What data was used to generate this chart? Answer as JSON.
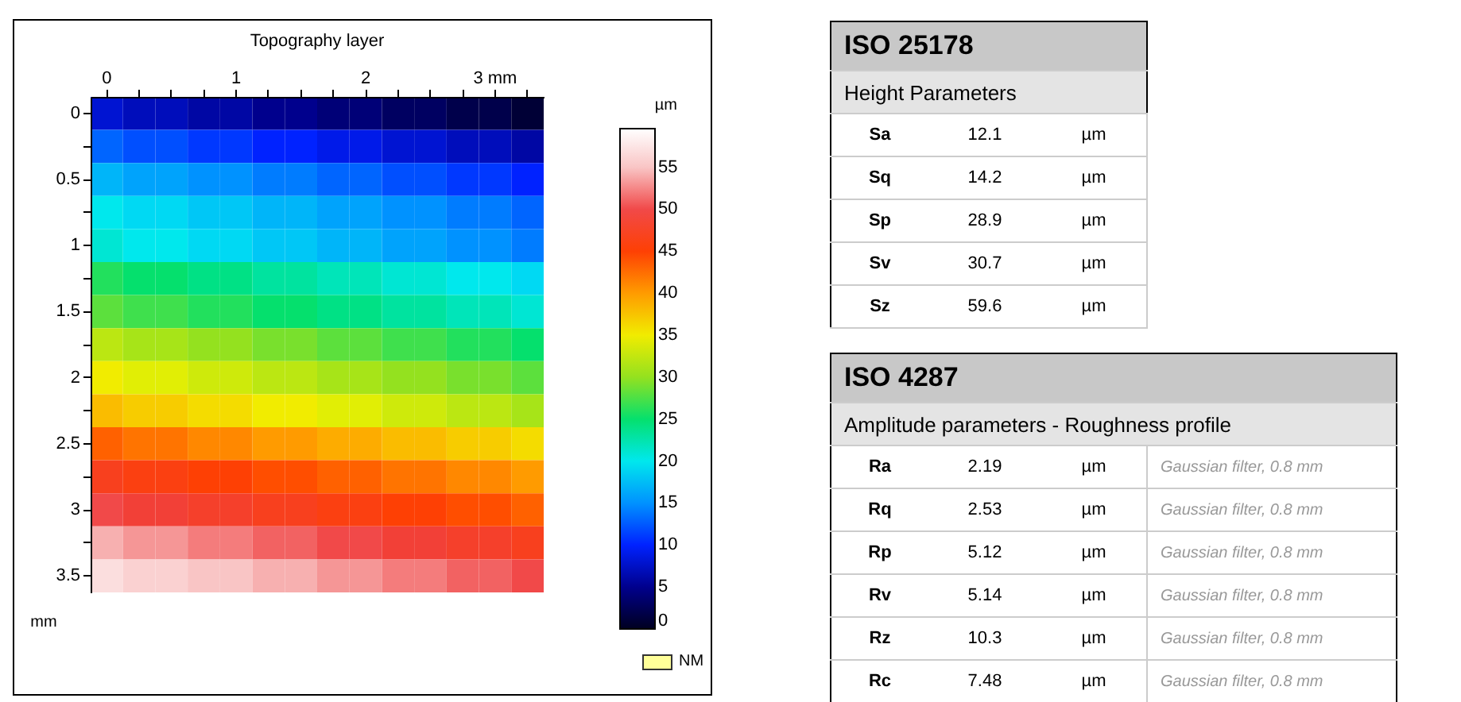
{
  "chart_data": [
    {
      "type": "heatmap",
      "title": "Topography layer",
      "ylabel": "mm",
      "clabel": "µm",
      "categories": [
        "0",
        null,
        null,
        null,
        "1",
        null,
        null,
        null,
        "2",
        null,
        null,
        null,
        "3 mm",
        null
      ],
      "y_categories": [
        "0",
        null,
        "0.5",
        null,
        "1",
        null,
        "1.5",
        null,
        "2",
        null,
        "2.5",
        null,
        "3",
        null,
        "3.5"
      ],
      "clim": [
        0,
        59.6
      ],
      "cticks": [
        0,
        5,
        10,
        15,
        20,
        25,
        30,
        35,
        40,
        45,
        50,
        55
      ],
      "colors": [
        "#000020",
        "#00008c",
        "#0020ff",
        "#0090ff",
        "#00e8f0",
        "#00e070",
        "#90e020",
        "#f0f000",
        "#ffa000",
        "#ff4000",
        "#f04040",
        "#f8c0c0",
        "#ffffff"
      ],
      "annotations": [
        "NM"
      ],
      "cells": [
        [
          8,
          7,
          7,
          6,
          6,
          5,
          5,
          4,
          4,
          3,
          3,
          2,
          2,
          1
        ],
        [
          13,
          12,
          12,
          11,
          11,
          10,
          10,
          9,
          9,
          8,
          8,
          7,
          7,
          6
        ],
        [
          17,
          16,
          16,
          15,
          15,
          14,
          14,
          13,
          13,
          12,
          12,
          11,
          11,
          10
        ],
        [
          20,
          19,
          19,
          18,
          18,
          17,
          17,
          16,
          16,
          15,
          15,
          14,
          14,
          13
        ],
        [
          21,
          20,
          20,
          19,
          19,
          18,
          18,
          17,
          17,
          16,
          16,
          15,
          15,
          14
        ],
        [
          26,
          25,
          25,
          24,
          24,
          23,
          23,
          22,
          22,
          21,
          21,
          20,
          20,
          19
        ],
        [
          28,
          27,
          27,
          26,
          26,
          25,
          25,
          24,
          24,
          23,
          23,
          22,
          22,
          21
        ],
        [
          32,
          31,
          31,
          30,
          30,
          29,
          29,
          28,
          28,
          27,
          27,
          26,
          26,
          25
        ],
        [
          35,
          34,
          34,
          33,
          33,
          32,
          32,
          31,
          31,
          30,
          30,
          29,
          29,
          28
        ],
        [
          38,
          37,
          37,
          36,
          36,
          35,
          35,
          34,
          34,
          33,
          33,
          32,
          32,
          31
        ],
        [
          43,
          42,
          42,
          41,
          41,
          40,
          40,
          39,
          39,
          38,
          38,
          37,
          37,
          36
        ],
        [
          47,
          46,
          46,
          45,
          45,
          44,
          44,
          43,
          43,
          42,
          42,
          41,
          41,
          40
        ],
        [
          50,
          49,
          49,
          48,
          48,
          47,
          47,
          46,
          46,
          45,
          45,
          44,
          44,
          43
        ],
        [
          54,
          53,
          53,
          52,
          52,
          51,
          51,
          50,
          50,
          49,
          49,
          48,
          48,
          47
        ],
        [
          57,
          56,
          56,
          55,
          55,
          54,
          54,
          53,
          53,
          52,
          52,
          51,
          51,
          50
        ]
      ]
    },
    {
      "type": "other",
      "title": "ISO 25178",
      "subtitle": "Height Parameters",
      "categories": [
        "Sa",
        "Sq",
        "Sp",
        "Sv",
        "Sz"
      ],
      "annotations": [
        "12.1",
        "µm",
        "14.2",
        "µm",
        "28.9",
        "µm",
        "30.7",
        "µm",
        "59.6",
        "µm"
      ]
    },
    {
      "type": "other",
      "title": "ISO 4287",
      "subtitle": "Amplitude parameters - Roughness profile",
      "categories": [
        "Ra",
        "Rq",
        "Rp",
        "Rv",
        "Rz",
        "Rc"
      ],
      "annotations": [
        "2.19",
        "µm",
        "Gaussian filter, 0.8 mm",
        "2.53",
        "µm",
        "Gaussian filter, 0.8 mm",
        "5.12",
        "µm",
        "Gaussian filter, 0.8 mm",
        "5.14",
        "µm",
        "Gaussian filter, 0.8 mm",
        "10.3",
        "µm",
        "Gaussian filter, 0.8 mm",
        "7.48",
        "µm",
        "Gaussian filter, 0.8 mm"
      ]
    }
  ]
}
